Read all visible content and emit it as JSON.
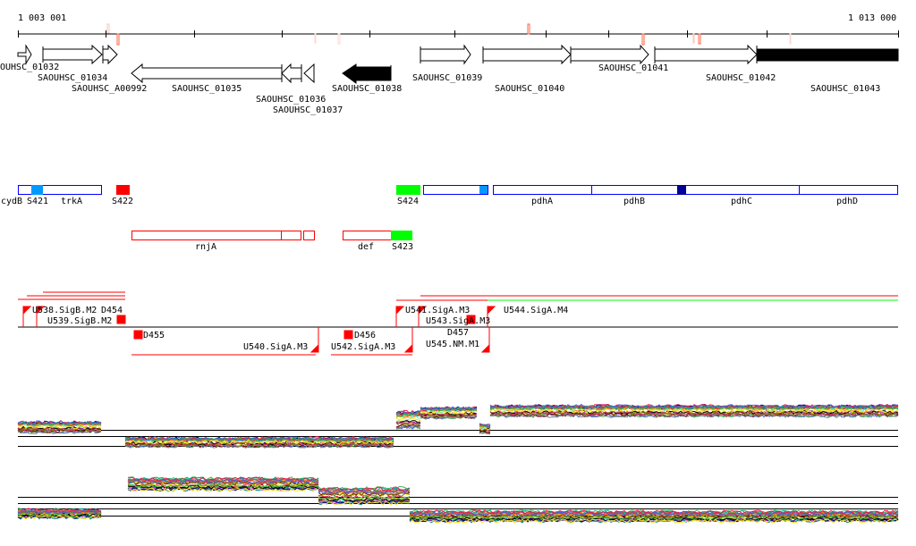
{
  "ruler": {
    "start_label": "1 003 001",
    "end_label": "1 013 000"
  },
  "genes": {
    "g01032": "OUHSC_01032",
    "g01034": "SAOUHSC_01034",
    "gA00992": "SAOUHSC_A00992",
    "g01035": "SAOUHSC_01035",
    "g01036": "SAOUHSC_01036",
    "g01037": "SAOUHSC_01037",
    "g01038": "SAOUHSC_01038",
    "g01039": "SAOUHSC_01039",
    "g01040": "SAOUHSC_01040",
    "g01041": "SAOUHSC_01041",
    "g01042": "SAOUHSC_01042",
    "g01043": "SAOUHSC_01043"
  },
  "operons": {
    "cydB": "cydB",
    "S421": "S421",
    "trkA": "trkA",
    "S422": "S422",
    "S424": "S424",
    "pdhA": "pdhA",
    "pdhB": "pdhB",
    "pdhC": "pdhC",
    "pdhD": "pdhD",
    "rnjA": "rnjA",
    "def": "def",
    "S423": "S423"
  },
  "transcripts": {
    "U538": "U538.SigB.M2",
    "U539": "U539.SigB.M2",
    "D454": "D454",
    "D455": "D455",
    "U540": "U540.SigA.M3",
    "D456": "D456",
    "U542": "U542.SigA.M3",
    "U541": "U541.SigA.M3",
    "U543": "U543.SigA.M3",
    "D457": "D457",
    "U544": "U544.SigA.M4",
    "U545": "U545.NM.M1"
  },
  "colors": {
    "sense_feature": "#0000ff",
    "antisense_feature": "#ff0000",
    "sigma_site": "#00ff00",
    "blue_fill": "#0099ff",
    "dark_blue_fill": "#000099",
    "marker": "#ff6644"
  }
}
